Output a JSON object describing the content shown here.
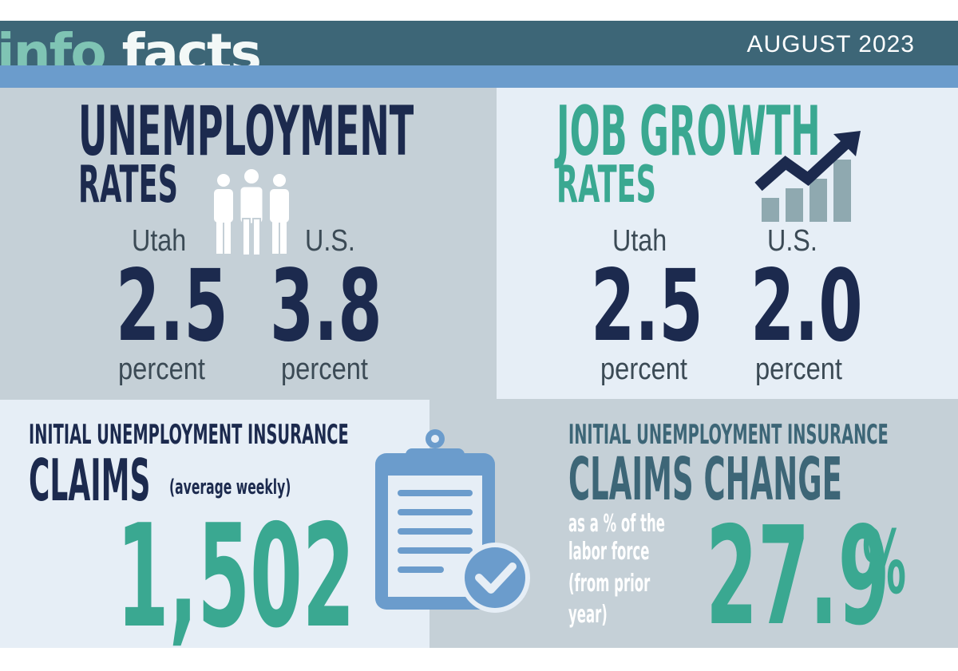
{
  "header": {
    "brand_info": "info",
    "brand_facts": "facts",
    "date": "AUGUST 2023"
  },
  "unemployment": {
    "title_line1": "UNEMPLOYMENT",
    "title_line2": "RATES",
    "utah_label": "Utah",
    "us_label": "U.S.",
    "utah_value": "2.5",
    "us_value": "3.8",
    "utah_unit": "percent",
    "us_unit": "percent",
    "icon": "people-icon"
  },
  "job_growth": {
    "title_line1": "JOB GROWTH",
    "title_line2": "RATES",
    "utah_label": "Utah",
    "us_label": "U.S.",
    "utah_value": "2.5",
    "us_value": "2.0",
    "utah_unit": "percent",
    "us_unit": "percent",
    "icon": "growth-chart-icon"
  },
  "claims": {
    "title_line1": "INITIAL UNEMPLOYMENT INSURANCE",
    "title_line2": "CLAIMS",
    "qualifier": "(average weekly)",
    "value": "1,502",
    "icon": "clipboard-check-icon"
  },
  "claims_change": {
    "title_line1": "INITIAL UNEMPLOYMENT INSURANCE",
    "title_line2": "CLAIMS CHANGE",
    "note_line1": "as a % of the",
    "note_line2": "labor force",
    "note_line3": "(from prior",
    "note_line4": "year)",
    "value": "27.9",
    "value_suffix": "%"
  },
  "colors": {
    "header": "#3d6677",
    "stripe": "#6b9ccc",
    "navy": "#1c2a4e",
    "teal": "#3aa891",
    "slate": "#3d6677",
    "panel_gray": "#c5d0d7",
    "panel_light": "#e6eef6"
  }
}
